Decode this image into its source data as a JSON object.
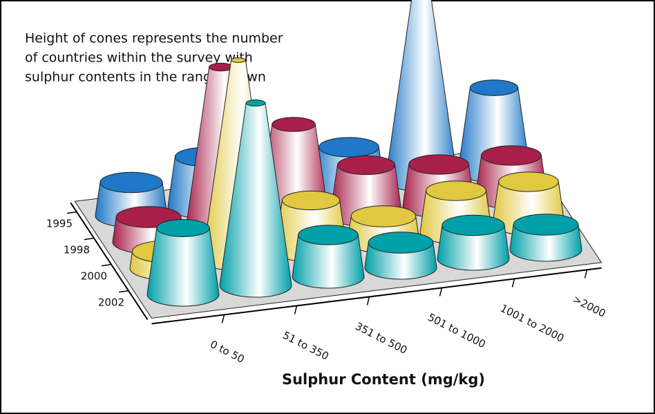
{
  "chart_data": {
    "type": "cone3d",
    "annotation": [
      "Height of cones represents the number",
      "of countries within the survey with",
      "sulphur contents in the range shown"
    ],
    "x_label": "Sulphur Content (mg/kg)",
    "categories": [
      "0 to 50",
      "51 to 350",
      "351 to 500",
      "501 to 1000",
      "1001 to 2000",
      ">2000"
    ],
    "series": [
      {
        "name": "1995",
        "color": "#1f78c8",
        "values": [
          4,
          6,
          5,
          5,
          30,
          10
        ]
      },
      {
        "name": "1998",
        "color": "#a8204a",
        "values": [
          3,
          20,
          12,
          6,
          5,
          5
        ]
      },
      {
        "name": "2000",
        "color": "#e0c840",
        "values": [
          2,
          24,
          6,
          3,
          5,
          5
        ]
      },
      {
        "name": "2002",
        "color": "#00a0a8",
        "values": [
          8,
          22,
          5,
          3,
          4,
          3
        ]
      }
    ]
  }
}
